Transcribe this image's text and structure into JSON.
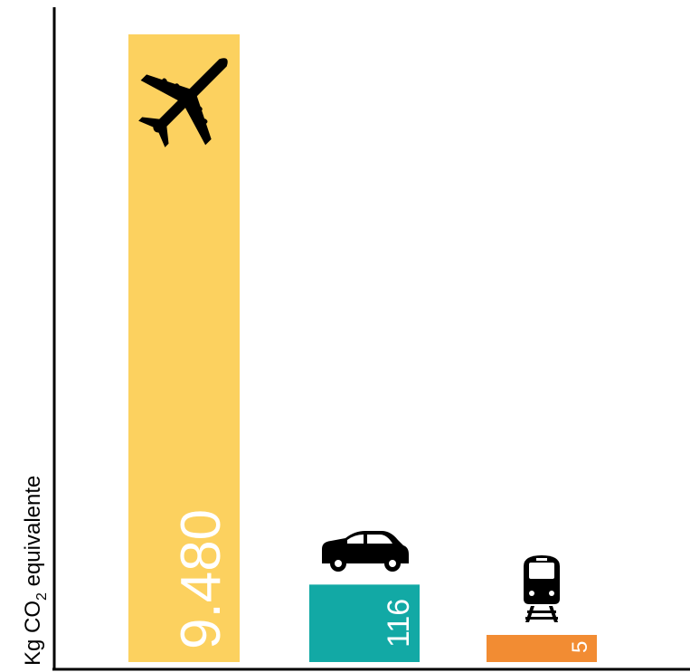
{
  "chart_data": {
    "type": "bar",
    "ylabel_prefix": "Kg CO",
    "ylabel_subscript": "2",
    "ylabel_suffix": " equivalente",
    "categories_icons": [
      "airplane-icon",
      "car-icon",
      "train-icon"
    ],
    "values": [
      9480,
      116,
      5
    ],
    "value_labels": [
      "9.480",
      "116",
      "5"
    ],
    "colors": [
      "#FCD15F",
      "#12A9A5",
      "#F28C33"
    ],
    "label_color": "#ffffff",
    "axis_color": "#000000",
    "icon_color": "#000000",
    "scale": "nonlinear-illustrative"
  }
}
